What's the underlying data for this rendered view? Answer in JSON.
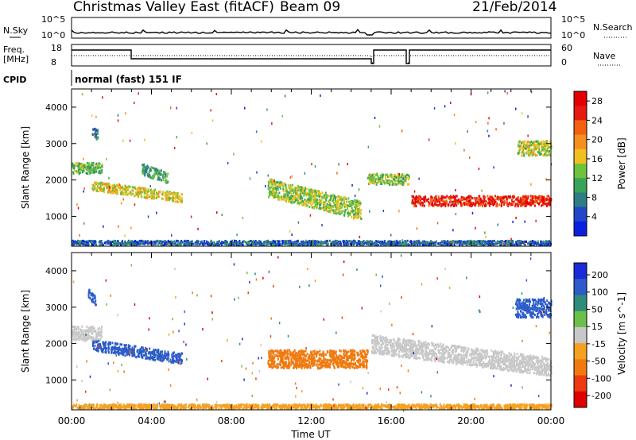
{
  "header": {
    "station": "Christmas Valley East (fitACF)",
    "beam": "Beam 09",
    "date": "21/Feb/2014"
  },
  "status_panel": {
    "nsky_label": "N.Sky",
    "nsearch_label": "N.Search",
    "freq_label_1": "Freq.",
    "freq_label_2": "[MHz]",
    "nave_label": "Nave",
    "cpid_label": "CPID",
    "cpid_value": "normal (fast) 151 IF",
    "noise_left_ticks": [
      "10^5",
      "10^0"
    ],
    "noise_right_ticks": [
      "10^5",
      "10^0"
    ],
    "freq_left_ticks": [
      "18",
      "8"
    ],
    "nave_right_ticks": [
      "60",
      "0"
    ]
  },
  "x_axis": {
    "label": "Time UT",
    "tick_labels": [
      "00:00",
      "04:00",
      "08:00",
      "12:00",
      "16:00",
      "20:00",
      "00:00"
    ]
  },
  "colors": {
    "power_scale": [
      "#0b1fe0",
      "#2147c8",
      "#2f7d84",
      "#3aa35a",
      "#6fc23c",
      "#f0c020",
      "#f59020",
      "#f26010",
      "#e51a10",
      "#e40000"
    ],
    "velocity_scale": [
      "#1a2bd8",
      "#2c5cc9",
      "#2e8c78",
      "#6cc04a",
      "#c8c8c8",
      "#f5a020",
      "#f07a10",
      "#ee3a10",
      "#e00000"
    ]
  },
  "chart_data": [
    {
      "type": "heatmap",
      "title": "Power",
      "ylabel": "Slant Range [km]",
      "xlabel": "",
      "x_range_hours": [
        0,
        24
      ],
      "ylim": [
        180,
        4500
      ],
      "yticks": [
        1000,
        2000,
        3000,
        4000
      ],
      "colorbar": {
        "label": "Power [dB]",
        "tick_labels": [
          "4",
          "8",
          "12",
          "16",
          "20",
          "24",
          "28"
        ],
        "range": [
          0,
          30
        ]
      },
      "regions": [
        {
          "t_start": 0.0,
          "t_end": 1.5,
          "r_center": 2350,
          "r_width": 300,
          "value": 12
        },
        {
          "t_start": 1.0,
          "t_end": 5.5,
          "r_center": 1700,
          "r_width": 260,
          "value": 16
        },
        {
          "t_start": 3.5,
          "t_end": 4.8,
          "r_center": 2200,
          "r_width": 300,
          "value": 10
        },
        {
          "t_start": 1.0,
          "t_end": 1.3,
          "r_center": 3300,
          "r_width": 300,
          "value": 8
        },
        {
          "t_start": 9.8,
          "t_end": 14.5,
          "r_center": 1500,
          "r_width": 500,
          "value": 14
        },
        {
          "t_start": 14.8,
          "t_end": 16.9,
          "r_center": 2050,
          "r_width": 300,
          "value": 14
        },
        {
          "t_start": 17.0,
          "t_end": 24.0,
          "r_center": 1450,
          "r_width": 280,
          "value": 26
        },
        {
          "t_start": 22.3,
          "t_end": 24.0,
          "r_center": 2900,
          "r_width": 400,
          "value": 15
        },
        {
          "t_start": 0.0,
          "t_end": 24.0,
          "r_center": 300,
          "r_width": 120,
          "value": 6
        }
      ]
    },
    {
      "type": "heatmap",
      "title": "Velocity",
      "ylabel": "Slant Range [km]",
      "xlabel": "Time UT",
      "x_range_hours": [
        0,
        24
      ],
      "ylim": [
        180,
        4500
      ],
      "yticks": [
        1000,
        2000,
        3000,
        4000
      ],
      "colorbar": {
        "label": "Velocity [m s^-1]",
        "tick_labels": [
          "200",
          "100",
          "50",
          "15",
          "-15",
          "-50",
          "-100",
          "-200"
        ],
        "range": [
          -250,
          250
        ]
      },
      "regions": [
        {
          "t_start": 0.0,
          "t_end": 1.5,
          "r_center": 2300,
          "r_width": 400,
          "value": 0
        },
        {
          "t_start": 1.0,
          "t_end": 5.5,
          "r_center": 1800,
          "r_width": 300,
          "value": 180
        },
        {
          "t_start": 0.8,
          "t_end": 1.2,
          "r_center": 3300,
          "r_width": 250,
          "value": 180
        },
        {
          "t_start": 9.8,
          "t_end": 14.8,
          "r_center": 1600,
          "r_width": 500,
          "value": -120
        },
        {
          "t_start": 15.0,
          "t_end": 24.0,
          "r_center": 1700,
          "r_width": 500,
          "value": 0
        },
        {
          "t_start": 22.2,
          "t_end": 24.0,
          "r_center": 3000,
          "r_width": 500,
          "value": 170
        },
        {
          "t_start": 0.0,
          "t_end": 24.0,
          "r_center": 300,
          "r_width": 120,
          "value": -40
        }
      ]
    }
  ]
}
